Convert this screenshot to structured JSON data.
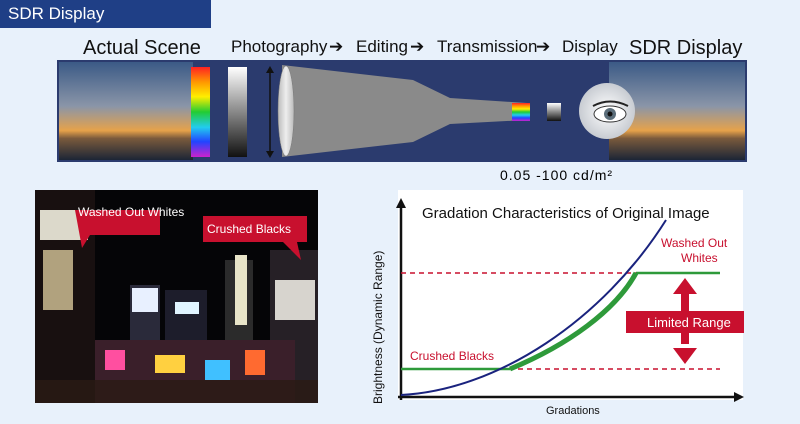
{
  "header": {
    "tag": "SDR Display"
  },
  "top": {
    "left_title": "Actual Scene",
    "right_title": "SDR Display",
    "steps": [
      "Photography",
      "Editing",
      "Transmission",
      "Display"
    ],
    "range_label": "0.05 -100 cd/m²"
  },
  "photo": {
    "callout_whites": "Washed Out Whites",
    "callout_blacks": "Crushed Blacks"
  },
  "graph": {
    "title": "Gradation Characteristics of Original Image",
    "ylabel": "Brightness (Dynamic Range)",
    "xlabel": "Gradations",
    "washed_out": "Washed Out\nWhites",
    "limited": "Limited Range",
    "crushed": "Crushed Blacks"
  },
  "colors": {
    "navy": "#1f3f86",
    "red": "#c8102e",
    "curve": "#1a237e",
    "green": "#2e9a3a"
  }
}
